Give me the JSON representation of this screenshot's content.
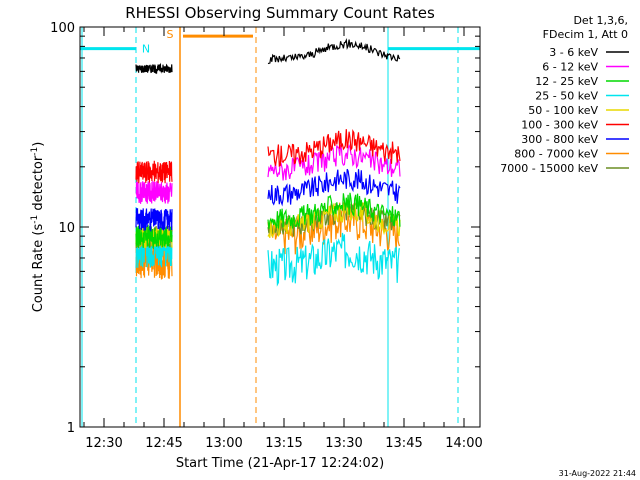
{
  "chart_data": {
    "type": "line",
    "title": "RHESSI Observing Summary Count Rates",
    "xlabel": "Start Time (21-Apr-17 12:24:02)",
    "ylabel_main": "Count Rate (s",
    "ylabel_sup1": "-1",
    "ylabel_mid": " detector",
    "ylabel_sup2": "-1",
    "ylabel_end": ")",
    "yscale": "log",
    "ylim": [
      1,
      100
    ],
    "xlim": [
      "12:24",
      "14:04"
    ],
    "x_ticks": [
      "12:30",
      "12:45",
      "13:00",
      "13:15",
      "13:30",
      "13:45",
      "14:00"
    ],
    "y_ticks": [
      "1",
      "10",
      "100"
    ],
    "legend_header": [
      "Det 1,3,6,",
      "FDecim 1, Att 0"
    ],
    "legend_position": "top-right",
    "timestamp": "31-Aug-2022 21:44",
    "markers": [
      {
        "label": "N",
        "color": "#00e5ee"
      },
      {
        "label": "S",
        "color": "#ff8c00"
      }
    ],
    "intervals": {
      "night": [
        [
          "12:24",
          "12:38"
        ],
        [
          "13:41",
          "14:04"
        ]
      ],
      "saa": [
        [
          "12:49",
          "13:08"
        ]
      ]
    },
    "data_gap": [
      "12:47",
      "13:11"
    ],
    "series": [
      {
        "name": "3 - 6 keV",
        "color": "#000000",
        "values": [
          62,
          75
        ]
      },
      {
        "name": "6 - 12 keV",
        "color": "#ff00ff",
        "values": [
          15,
          21
        ]
      },
      {
        "name": "12 - 25 keV",
        "color": "#00d800",
        "values": [
          9,
          12
        ]
      },
      {
        "name": "25 - 50 keV",
        "color": "#00e5ee",
        "values": [
          8,
          7
        ]
      },
      {
        "name": "50 - 100 keV",
        "color": "#e8d800",
        "values": [
          9,
          11
        ]
      },
      {
        "name": "100 - 300 keV",
        "color": "#ff0000",
        "values": [
          19,
          25
        ]
      },
      {
        "name": "300 - 800 keV",
        "color": "#0000ff",
        "values": [
          11,
          16
        ]
      },
      {
        "name": "800 - 7000 keV",
        "color": "#ff8c00",
        "values": [
          7,
          10
        ]
      },
      {
        "name": "7000 - 15000 keV",
        "color": "#6b8e23",
        "values": [
          9,
          11
        ]
      }
    ]
  }
}
